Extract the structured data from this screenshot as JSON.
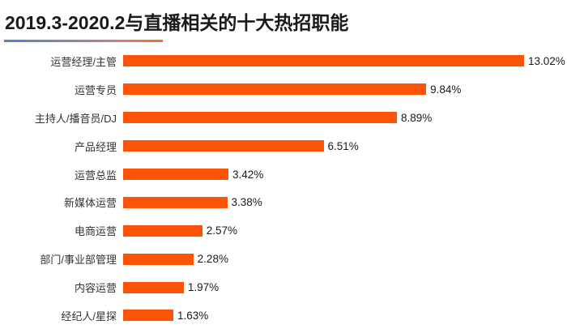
{
  "title": "2019.3-2020.2与直播相关的十大热招职能",
  "colors": {
    "bar": "#fb5307",
    "title_text": "#1a1a1a",
    "label_text": "#333333",
    "value_text": "#1a1a1a",
    "underline_gradient_start": "#4a86c8",
    "underline_gradient_mid": "#a57ca8",
    "underline_gradient_end": "#ec7420",
    "background": "#ffffff"
  },
  "chart_data": {
    "type": "bar",
    "orientation": "horizontal",
    "title": "2019.3-2020.2与直播相关的十大热招职能",
    "categories": [
      "运营经理/主管",
      "运营专员",
      "主持人/播音员/DJ",
      "产品经理",
      "运营总监",
      "新媒体运营",
      "电商运营",
      "部门/事业部管理",
      "内容运营",
      "经纪人/星探"
    ],
    "values": [
      13.02,
      9.84,
      8.89,
      6.51,
      3.42,
      3.38,
      2.57,
      2.28,
      1.97,
      1.63
    ],
    "value_labels": [
      "13.02%",
      "9.84%",
      "8.89%",
      "6.51%",
      "3.42%",
      "3.38%",
      "2.57%",
      "2.28%",
      "1.97%",
      "1.63%"
    ],
    "xlabel": "",
    "ylabel": "",
    "xlim": [
      0,
      13.02
    ],
    "grid": false,
    "legend": false,
    "value_labels_shown": true,
    "axis_shown": false
  }
}
